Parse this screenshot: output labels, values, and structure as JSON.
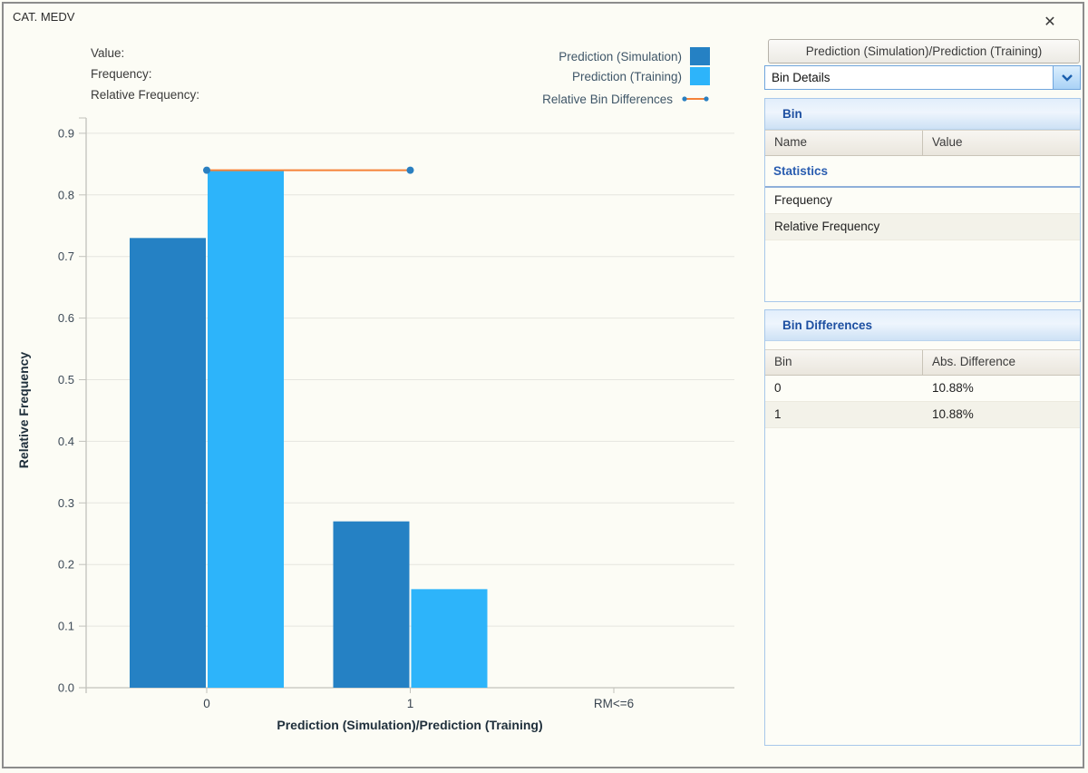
{
  "window": {
    "title": "CAT. MEDV",
    "close_icon": "✕"
  },
  "info_panel": {
    "labels": [
      "Value:",
      "Frequency:",
      "Relative Frequency:"
    ]
  },
  "legend": {
    "items": [
      {
        "label": "Prediction (Simulation)",
        "type": "square",
        "color": "#2581c4"
      },
      {
        "label": "Prediction (Training)",
        "type": "square",
        "color": "#2db4fa"
      },
      {
        "label": "Relative Bin Differences",
        "type": "line",
        "color": "#f58238",
        "marker_color": "#2a7fc0"
      }
    ]
  },
  "chart_data": {
    "type": "bar",
    "title": "",
    "categories": [
      "0",
      "1",
      "RM<=6"
    ],
    "series": [
      {
        "name": "Prediction (Simulation)",
        "color": "#2581c4",
        "values": [
          0.73,
          0.27,
          null
        ]
      },
      {
        "name": "Prediction (Training)",
        "color": "#2db4fa",
        "values": [
          0.84,
          0.16,
          null
        ]
      }
    ],
    "difference_line": {
      "name": "Relative Bin Differences",
      "color": "#f58238",
      "marker_color": "#2a7fc0",
      "points": [
        {
          "category": "0",
          "value": 0.84
        },
        {
          "category": "1",
          "value": 0.84
        }
      ]
    },
    "xlabel": "Prediction (Simulation)/Prediction (Training)",
    "ylabel": "Relative Frequency",
    "ylim": [
      0,
      0.9
    ],
    "yticks": [
      "0.0",
      "0.1",
      "0.2",
      "0.3",
      "0.4",
      "0.5",
      "0.6",
      "0.7",
      "0.8",
      "0.9"
    ],
    "grid": true,
    "legend_position": "top-right"
  },
  "side_panel": {
    "header_button_label": "Prediction (Simulation)/Prediction (Training)",
    "view_dropdown": {
      "value": "Bin Details"
    },
    "bin_section": {
      "title": "Bin",
      "columns": [
        "Name",
        "Value"
      ]
    },
    "statistics_section": {
      "title": "Statistics",
      "rows": [
        "Frequency",
        "Relative Frequency"
      ]
    },
    "bin_differences_section": {
      "title": "Bin Differences",
      "columns": [
        "Bin",
        "Abs. Difference"
      ],
      "rows": [
        {
          "bin": "0",
          "abs_difference": "10.88%"
        },
        {
          "bin": "1",
          "abs_difference": "10.88%"
        }
      ]
    }
  }
}
